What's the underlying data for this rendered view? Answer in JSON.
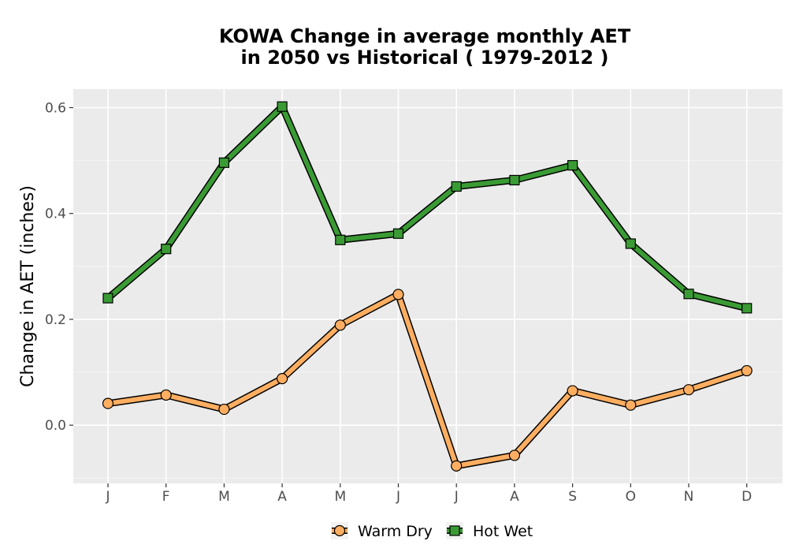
{
  "chart_data": {
    "type": "line",
    "title_lines": [
      "KOWA  Change in average monthly AET",
      "in 2050 vs Historical ( 1979-2012 )"
    ],
    "xlabel": "",
    "ylabel": "Change in AET (inches)",
    "categories": [
      "J",
      "F",
      "M",
      "A",
      "M",
      "J",
      "J",
      "A",
      "S",
      "O",
      "N",
      "D"
    ],
    "y_ticks": [
      0.0,
      0.2,
      0.4,
      0.6
    ],
    "y_tick_labels": [
      "0.0",
      "0.2",
      "0.4",
      "0.6"
    ],
    "ylim": [
      -0.11,
      0.635
    ],
    "grid": true,
    "legend_position": "bottom",
    "series": [
      {
        "name": "Warm Dry",
        "marker": "circle",
        "color": "#FDAE61",
        "values": [
          0.041,
          0.057,
          0.03,
          0.088,
          0.189,
          0.247,
          -0.077,
          -0.057,
          0.065,
          0.038,
          0.067,
          0.103
        ]
      },
      {
        "name": "Hot Wet",
        "marker": "square",
        "color": "#3A9B34",
        "values": [
          0.24,
          0.333,
          0.496,
          0.602,
          0.35,
          0.362,
          0.451,
          0.463,
          0.491,
          0.343,
          0.248,
          0.221
        ]
      }
    ]
  }
}
